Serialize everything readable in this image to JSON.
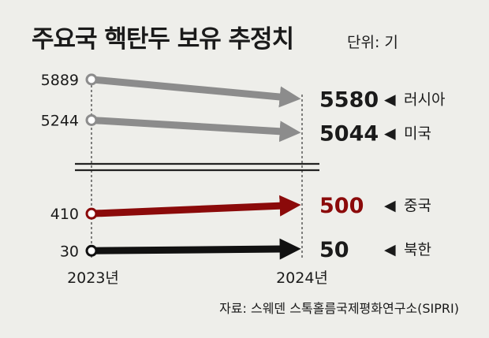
{
  "title": "주요국 핵탄두 보유 추정치",
  "unit_label": "단위: 기",
  "source": "자료: 스웨덴 스톡홀름국제평화연구소(SIPRI)",
  "marker_symbol": "◀",
  "chart_data": {
    "type": "line",
    "x": [
      "2023년",
      "2024년"
    ],
    "y_axis_break": true,
    "series": [
      {
        "name": "러시아",
        "values": [
          5889,
          5580
        ],
        "color": "#8c8c8c",
        "label_color": "#1a1a1a",
        "group": "high"
      },
      {
        "name": "미국",
        "values": [
          5244,
          5044
        ],
        "color": "#8c8c8c",
        "label_color": "#1a1a1a",
        "group": "high"
      },
      {
        "name": "중국",
        "values": [
          410,
          500
        ],
        "color": "#8b0a0a",
        "label_color": "#8b0a0a",
        "group": "low"
      },
      {
        "name": "북한",
        "values": [
          30,
          50
        ],
        "color": "#111111",
        "label_color": "#1a1a1a",
        "group": "low"
      }
    ]
  }
}
